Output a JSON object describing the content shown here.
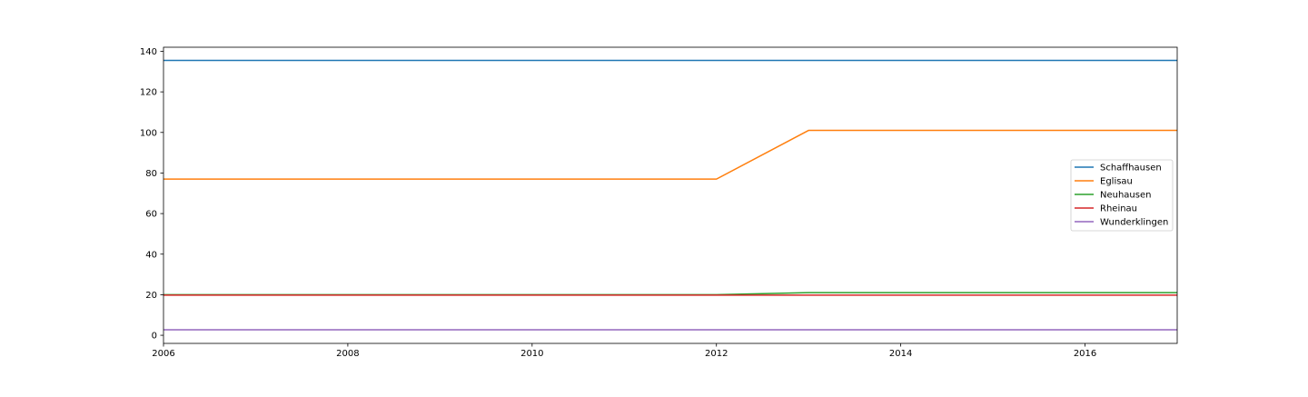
{
  "chart_data": {
    "type": "line",
    "title": "",
    "xlabel": "",
    "ylabel": "",
    "xlim": [
      2006,
      2017
    ],
    "ylim": [
      -4,
      142
    ],
    "xticks": [
      2006,
      2008,
      2010,
      2012,
      2014,
      2016
    ],
    "yticks": [
      0,
      20,
      40,
      60,
      80,
      100,
      120,
      140
    ],
    "grid": false,
    "legend_position": "center-right",
    "x": [
      2006,
      2007,
      2008,
      2009,
      2010,
      2011,
      2012,
      2013,
      2014,
      2015,
      2016,
      2017
    ],
    "series": [
      {
        "name": "Schaffhausen",
        "color": "#1f77b4",
        "values": [
          135.5,
          135.5,
          135.5,
          135.5,
          135.5,
          135.5,
          135.5,
          135.5,
          135.5,
          135.5,
          135.5,
          135.5
        ]
      },
      {
        "name": "Eglisau",
        "color": "#ff7f0e",
        "values": [
          77,
          77,
          77,
          77,
          77,
          77,
          77,
          101,
          101,
          101,
          101,
          101
        ]
      },
      {
        "name": "Neuhausen",
        "color": "#2ca02c",
        "values": [
          20,
          20,
          20,
          20,
          20,
          20,
          20,
          21,
          21,
          21,
          21,
          21
        ]
      },
      {
        "name": "Rheinau",
        "color": "#d62728",
        "values": [
          19.8,
          19.8,
          19.8,
          19.8,
          19.8,
          19.8,
          19.8,
          19.8,
          19.8,
          19.8,
          19.8,
          19.8
        ]
      },
      {
        "name": "Wunderklingen",
        "color": "#9467bd",
        "values": [
          2.7,
          2.7,
          2.7,
          2.7,
          2.7,
          2.7,
          2.7,
          2.7,
          2.7,
          2.7,
          2.7,
          2.7
        ]
      }
    ]
  }
}
